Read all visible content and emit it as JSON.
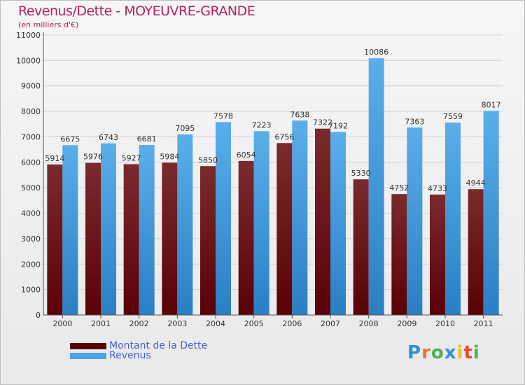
{
  "chart_data": {
    "type": "bar",
    "title": "Revenus/Dette - MOYEUVRE-GRANDE",
    "subtitle": "(en milliers d'€)",
    "categories": [
      "2000",
      "2001",
      "2002",
      "2003",
      "2004",
      "2005",
      "2006",
      "2007",
      "2008",
      "2009",
      "2010",
      "2011"
    ],
    "series": [
      {
        "name": "Montant de la Dette",
        "color": "#6b0f14",
        "values": [
          5914,
          5976,
          5927,
          5984,
          5850,
          6054,
          6756,
          7322,
          5330,
          4752,
          4733,
          4944
        ]
      },
      {
        "name": "Revenus",
        "color": "#4aa3e8",
        "values": [
          6675,
          6743,
          6681,
          7095,
          7578,
          7223,
          7638,
          7192,
          10086,
          7363,
          7559,
          8017
        ]
      }
    ],
    "yticks": [
      0,
      1000,
      2000,
      3000,
      4000,
      5000,
      6000,
      7000,
      8000,
      9000,
      10000,
      11000
    ],
    "ylim": [
      0,
      11000
    ],
    "xlabel": "",
    "ylabel": "",
    "legend": "bottom-left"
  },
  "legend": {
    "debt_label": "Montant de la Dette",
    "revenue_label": "Revenus"
  },
  "logo": {
    "text": "Proxiti",
    "letter_colors": [
      "#2f8fd8",
      "#e8762b",
      "#4ab34a",
      "#2f8fd8",
      "#e8c22b",
      "#e84a2b",
      "#4ab34a"
    ]
  }
}
